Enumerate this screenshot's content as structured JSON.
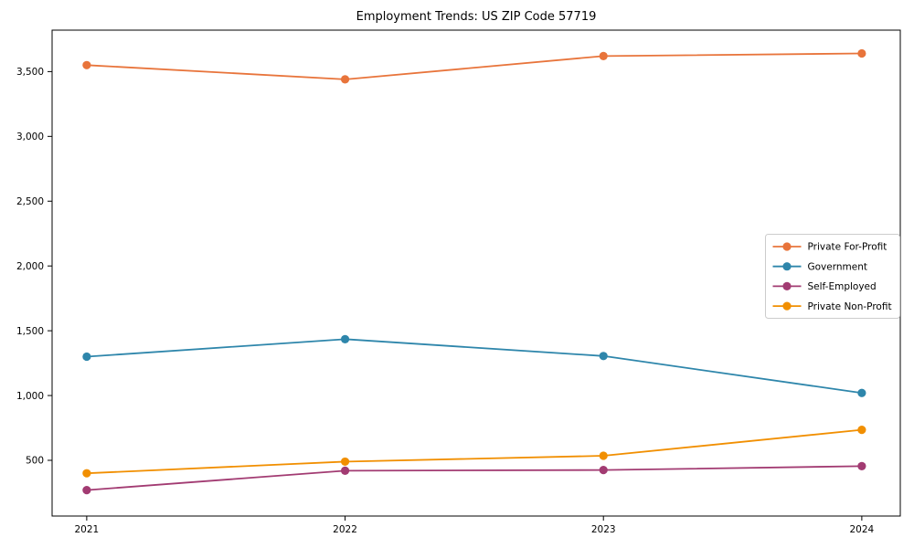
{
  "page": {
    "title": "Employment Trends: US ZIP Code 57719"
  },
  "chart_data": {
    "type": "line",
    "title": "Employment Trends: US ZIP Code 57719",
    "x": [
      2021,
      2022,
      2023,
      2024
    ],
    "x_tick_labels": [
      "2021",
      "2022",
      "2023",
      "2024"
    ],
    "series": [
      {
        "name": "Private For-Profit",
        "color": "#E8743B",
        "values": [
          3550,
          3440,
          3620,
          3640
        ]
      },
      {
        "name": "Government",
        "color": "#2E86AB",
        "values": [
          1300,
          1435,
          1305,
          1020
        ]
      },
      {
        "name": "Self-Employed",
        "color": "#A23B72",
        "values": [
          270,
          420,
          425,
          455
        ]
      },
      {
        "name": "Private Non-Profit",
        "color": "#F18F01",
        "values": [
          400,
          490,
          535,
          735
        ]
      }
    ],
    "yticks": [
      500,
      1000,
      1500,
      2000,
      2500,
      3000,
      3500
    ],
    "ytick_labels": [
      "500",
      "1,000",
      "1,500",
      "2,000",
      "2,500",
      "3,000",
      "3,500"
    ],
    "ylim": [
      70,
      3820
    ],
    "xlim": [
      2020.866,
      2024.149
    ],
    "xlabel": "",
    "ylabel": "",
    "grid": false,
    "legend_position": "center right",
    "marker": "o",
    "line_width": 1.8,
    "marker_radius": 4.6
  },
  "style": {
    "background_color": "#ffffff",
    "spine_color": "#000000",
    "text_color": "#000000",
    "legend_border_color": "#cccccc",
    "legend_background": "#ffffff"
  }
}
